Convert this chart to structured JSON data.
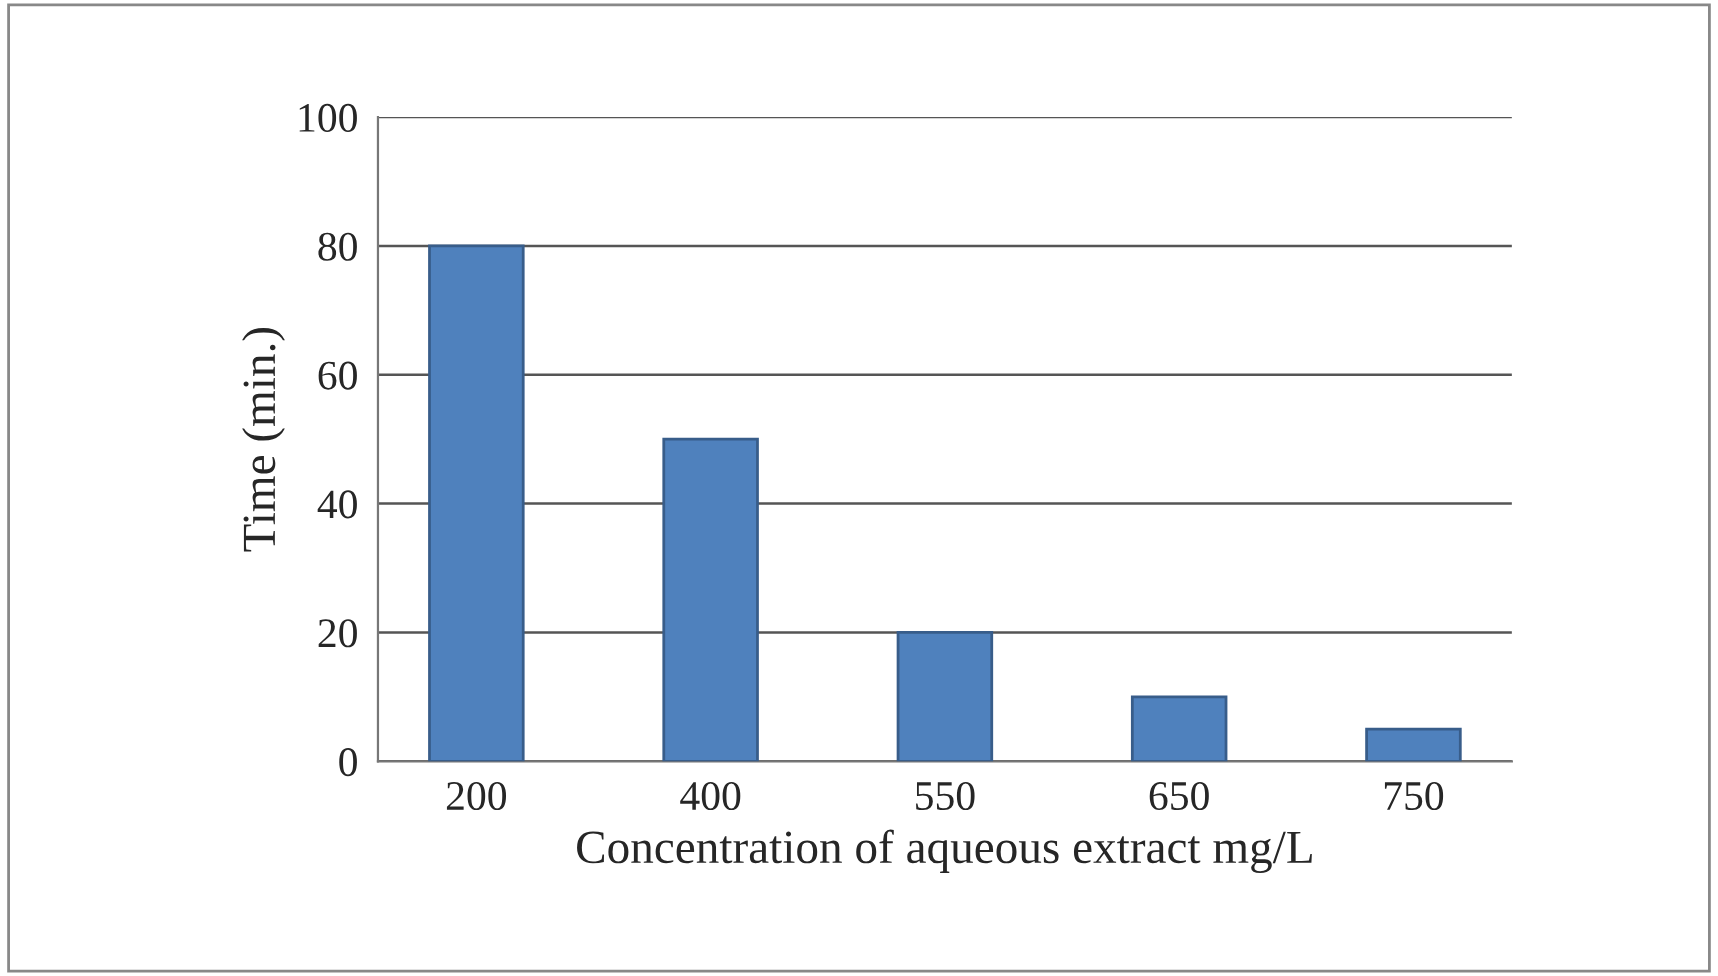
{
  "chart_data": {
    "type": "bar",
    "xlabel": "Concentration of aqueous extract mg/L",
    "ylabel": "Time (min.)",
    "categories": [
      "200",
      "400",
      "550",
      "650",
      "750"
    ],
    "values": [
      80,
      50,
      20,
      10,
      5
    ],
    "color": "#4f81bd",
    "ylim": [
      0,
      100
    ],
    "yticks": [
      0,
      20,
      40,
      60,
      80,
      100
    ],
    "grid": "y"
  }
}
